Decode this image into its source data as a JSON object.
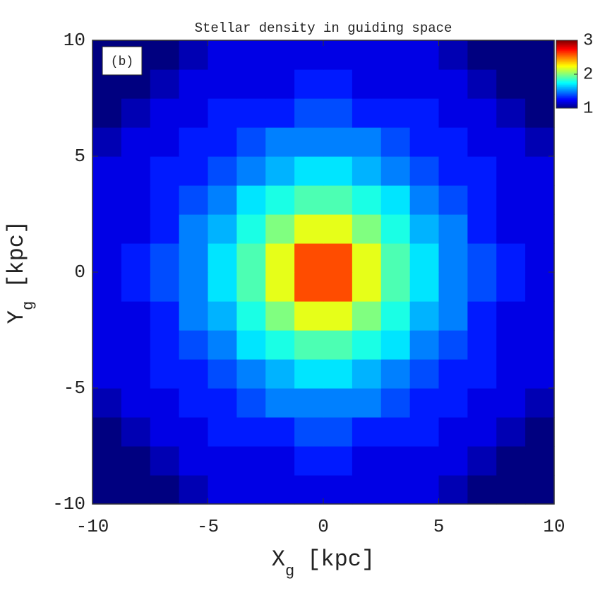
{
  "chart_data": {
    "type": "heatmap",
    "title": "Stellar density in guiding space",
    "xlabel": {
      "main": "X",
      "sub": "g",
      "unit": "[kpc]"
    },
    "ylabel": {
      "main": "Y",
      "sub": "g",
      "unit": "[kpc]"
    },
    "annotation": "(b)",
    "colormap": "jet",
    "xbins": [
      -10,
      -8.75,
      -7.5,
      -6.25,
      -5,
      -3.75,
      -2.5,
      -1.25,
      0,
      1.25,
      2.5,
      3.75,
      5,
      6.25,
      7.5,
      8.75,
      10
    ],
    "ybins": [
      -10,
      -8.75,
      -7.5,
      -6.25,
      -5,
      -3.75,
      -2.5,
      -1.25,
      0,
      1.25,
      2.5,
      3.75,
      5,
      6.25,
      7.5,
      8.75,
      10
    ],
    "values": [
      [
        1.0,
        1.0,
        1.0,
        1.1,
        1.2,
        1.2,
        1.2,
        1.2,
        1.2,
        1.2,
        1.2,
        1.2,
        1.1,
        1.0,
        1.0,
        1.0
      ],
      [
        1.0,
        1.0,
        1.1,
        1.2,
        1.2,
        1.2,
        1.2,
        1.3,
        1.3,
        1.2,
        1.2,
        1.2,
        1.2,
        1.1,
        1.0,
        1.0
      ],
      [
        1.0,
        1.1,
        1.2,
        1.2,
        1.3,
        1.3,
        1.3,
        1.4,
        1.4,
        1.3,
        1.3,
        1.3,
        1.2,
        1.2,
        1.1,
        1.0
      ],
      [
        1.1,
        1.2,
        1.2,
        1.3,
        1.3,
        1.4,
        1.5,
        1.5,
        1.5,
        1.5,
        1.4,
        1.3,
        1.3,
        1.2,
        1.2,
        1.1
      ],
      [
        1.2,
        1.2,
        1.3,
        1.3,
        1.4,
        1.5,
        1.6,
        1.7,
        1.7,
        1.6,
        1.5,
        1.4,
        1.3,
        1.3,
        1.2,
        1.2
      ],
      [
        1.2,
        1.2,
        1.3,
        1.4,
        1.5,
        1.7,
        1.8,
        1.9,
        1.9,
        1.8,
        1.7,
        1.5,
        1.4,
        1.3,
        1.2,
        1.2
      ],
      [
        1.2,
        1.2,
        1.3,
        1.5,
        1.6,
        1.8,
        2.0,
        2.2,
        2.2,
        2.0,
        1.8,
        1.6,
        1.5,
        1.3,
        1.2,
        1.2
      ],
      [
        1.2,
        1.3,
        1.4,
        1.5,
        1.7,
        1.9,
        2.2,
        2.6,
        2.6,
        2.2,
        1.9,
        1.7,
        1.5,
        1.4,
        1.3,
        1.2
      ],
      [
        1.2,
        1.3,
        1.4,
        1.5,
        1.7,
        1.9,
        2.2,
        2.6,
        2.6,
        2.2,
        1.9,
        1.7,
        1.5,
        1.4,
        1.3,
        1.2
      ],
      [
        1.2,
        1.2,
        1.3,
        1.5,
        1.6,
        1.8,
        2.0,
        2.2,
        2.2,
        2.0,
        1.8,
        1.6,
        1.5,
        1.3,
        1.2,
        1.2
      ],
      [
        1.2,
        1.2,
        1.3,
        1.4,
        1.5,
        1.7,
        1.8,
        1.9,
        1.9,
        1.8,
        1.7,
        1.5,
        1.4,
        1.3,
        1.2,
        1.2
      ],
      [
        1.2,
        1.2,
        1.3,
        1.3,
        1.4,
        1.5,
        1.6,
        1.7,
        1.7,
        1.6,
        1.5,
        1.4,
        1.3,
        1.3,
        1.2,
        1.2
      ],
      [
        1.1,
        1.2,
        1.2,
        1.3,
        1.3,
        1.4,
        1.5,
        1.5,
        1.5,
        1.5,
        1.4,
        1.3,
        1.3,
        1.2,
        1.2,
        1.1
      ],
      [
        1.0,
        1.1,
        1.2,
        1.2,
        1.3,
        1.3,
        1.3,
        1.4,
        1.4,
        1.3,
        1.3,
        1.3,
        1.2,
        1.2,
        1.1,
        1.0
      ],
      [
        1.0,
        1.0,
        1.1,
        1.2,
        1.2,
        1.2,
        1.2,
        1.3,
        1.3,
        1.2,
        1.2,
        1.2,
        1.2,
        1.1,
        1.0,
        1.0
      ],
      [
        1.0,
        1.0,
        1.0,
        1.1,
        1.2,
        1.2,
        1.2,
        1.2,
        1.2,
        1.2,
        1.2,
        1.2,
        1.1,
        1.0,
        1.0,
        1.0
      ]
    ],
    "xlim": [
      -10,
      10
    ],
    "ylim": [
      -10,
      10
    ],
    "xticks": [
      -10,
      -5,
      0,
      5,
      10
    ],
    "yticks": [
      -10,
      -5,
      0,
      5,
      10
    ],
    "clim": [
      1,
      3
    ],
    "cticks": [
      1,
      2,
      3
    ]
  }
}
